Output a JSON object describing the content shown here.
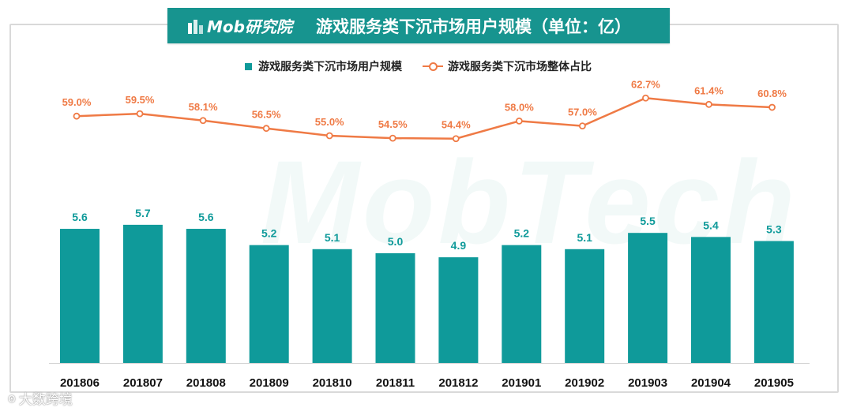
{
  "header": {
    "logo_text": "Mob研究院",
    "title": "游戏服务类下沉市场用户规模（单位：亿）"
  },
  "watermark_text": "MobTech",
  "source_mark": {
    "icon": "weibo-like-icon",
    "text": "大数跨境"
  },
  "colors": {
    "bar": "#0f9a9a",
    "line": "#ef7a45",
    "title_bg": "#17948f"
  },
  "chart_data": {
    "type": "bar",
    "categories": [
      "201806",
      "201807",
      "201808",
      "201809",
      "201810",
      "201811",
      "201812",
      "201901",
      "201902",
      "201903",
      "201904",
      "201905"
    ],
    "series": [
      {
        "name": "游戏服务类下沉市场用户规模",
        "type": "bar",
        "values": [
          5.6,
          5.7,
          5.6,
          5.2,
          5.1,
          5.0,
          4.9,
          5.2,
          5.1,
          5.5,
          5.4,
          5.3
        ],
        "labels": [
          "5.6",
          "5.7",
          "5.6",
          "5.2",
          "5.1",
          "5.0",
          "4.9",
          "5.2",
          "5.1",
          "5.5",
          "5.4",
          "5.3"
        ]
      },
      {
        "name": "游戏服务类下沉市场整体占比",
        "type": "line",
        "values": [
          59.0,
          59.5,
          58.1,
          56.5,
          55.0,
          54.5,
          54.4,
          58.0,
          57.0,
          62.7,
          61.4,
          60.8
        ],
        "labels": [
          "59.0%",
          "59.5%",
          "58.1%",
          "56.5%",
          "55.0%",
          "54.5%",
          "54.4%",
          "58.0%",
          "57.0%",
          "62.7%",
          "61.4%",
          "60.8%"
        ]
      }
    ],
    "legend_position": "top",
    "grid": false
  }
}
